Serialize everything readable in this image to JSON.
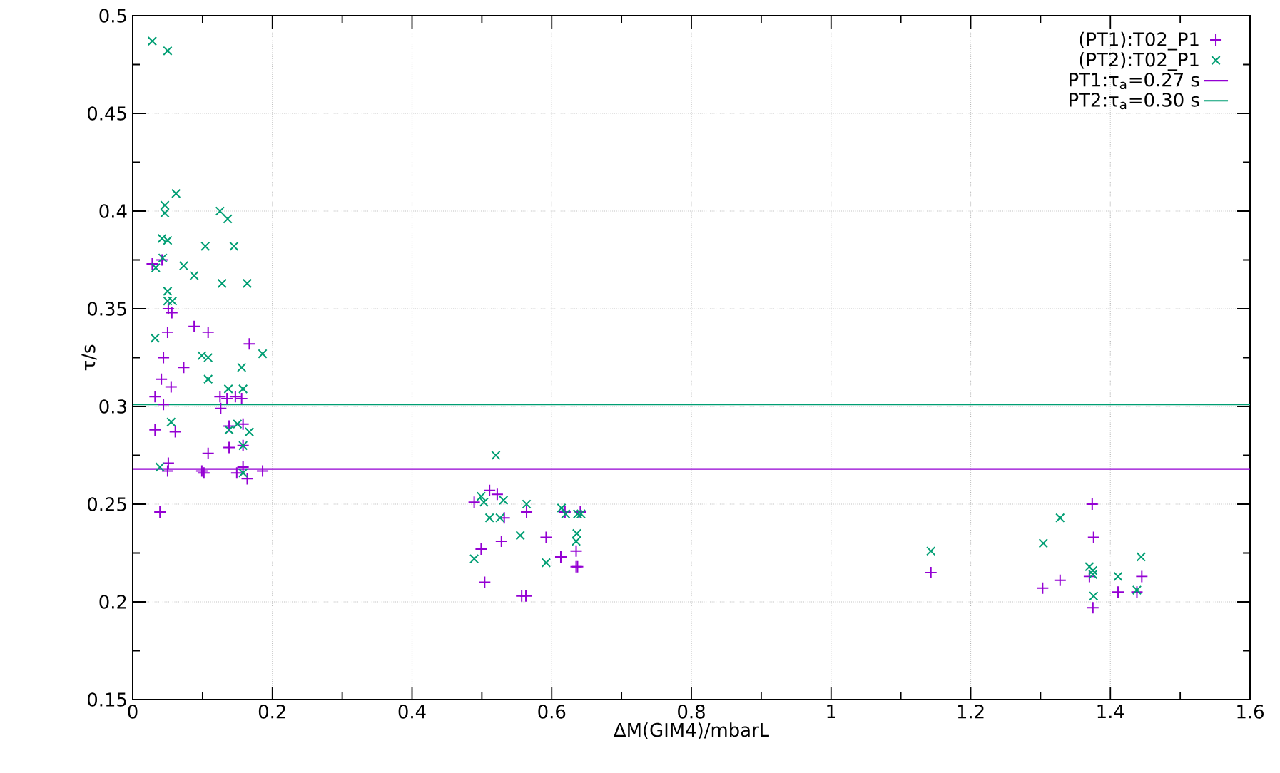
{
  "chart_data": {
    "type": "scatter",
    "xlabel": "ΔM(GIM4)/mbarL",
    "ylabel": "τ/s",
    "xlim": [
      0,
      1.6
    ],
    "ylim": [
      0.15,
      0.5
    ],
    "xticks": [
      0,
      0.2,
      0.4,
      0.6,
      0.8,
      1,
      1.2,
      1.4,
      1.6
    ],
    "yticks": [
      0.15,
      0.2,
      0.25,
      0.3,
      0.35,
      0.4,
      0.45,
      0.5
    ],
    "grid": true,
    "legend": "top right",
    "series": [
      {
        "name": "(PT1):T02_P1",
        "color": "#9400d3",
        "marker": "plus",
        "x": [
          0.028,
          0.042,
          0.051,
          0.056,
          0.05,
          0.088,
          0.108,
          0.044,
          0.167,
          0.073,
          0.041,
          0.055,
          0.032,
          0.044,
          0.125,
          0.135,
          0.147,
          0.156,
          0.126,
          0.032,
          0.061,
          0.138,
          0.158,
          0.138,
          0.158,
          0.108,
          0.051,
          0.05,
          0.099,
          0.102,
          0.158,
          0.149,
          0.164,
          0.186,
          0.039,
          0.489,
          0.511,
          0.522,
          0.499,
          0.504,
          0.528,
          0.532,
          0.564,
          0.557,
          0.563,
          0.592,
          0.613,
          0.619,
          0.635,
          0.635,
          0.637,
          0.641,
          1.143,
          1.303,
          1.328,
          1.374,
          1.376,
          1.37,
          1.375,
          1.411,
          1.438,
          1.445
        ],
        "values": [
          0.373,
          0.375,
          0.35,
          0.348,
          0.338,
          0.341,
          0.338,
          0.325,
          0.332,
          0.32,
          0.314,
          0.31,
          0.305,
          0.301,
          0.305,
          0.304,
          0.305,
          0.304,
          0.299,
          0.288,
          0.287,
          0.29,
          0.291,
          0.279,
          0.28,
          0.276,
          0.271,
          0.267,
          0.267,
          0.266,
          0.269,
          0.266,
          0.263,
          0.267,
          0.246,
          0.251,
          0.257,
          0.255,
          0.227,
          0.21,
          0.231,
          0.243,
          0.246,
          0.203,
          0.203,
          0.233,
          0.223,
          0.246,
          0.226,
          0.218,
          0.218,
          0.246,
          0.215,
          0.207,
          0.211,
          0.25,
          0.233,
          0.213,
          0.197,
          0.205,
          0.205,
          0.213
        ]
      },
      {
        "name": "(PT2):T02_P1",
        "color": "#009e73",
        "marker": "cross",
        "x": [
          0.028,
          0.05,
          0.062,
          0.046,
          0.046,
          0.125,
          0.136,
          0.042,
          0.05,
          0.104,
          0.145,
          0.043,
          0.033,
          0.073,
          0.088,
          0.128,
          0.164,
          0.05,
          0.05,
          0.057,
          0.032,
          0.099,
          0.108,
          0.186,
          0.156,
          0.108,
          0.137,
          0.158,
          0.055,
          0.15,
          0.138,
          0.167,
          0.158,
          0.039,
          0.158,
          0.52,
          0.489,
          0.499,
          0.503,
          0.511,
          0.526,
          0.531,
          0.564,
          0.555,
          0.592,
          0.614,
          0.62,
          0.636,
          0.635,
          0.637,
          0.642,
          1.143,
          1.304,
          1.328,
          1.37,
          1.375,
          1.375,
          1.376,
          1.411,
          1.438,
          1.444
        ],
        "values": [
          0.487,
          0.482,
          0.409,
          0.403,
          0.399,
          0.4,
          0.396,
          0.386,
          0.385,
          0.382,
          0.382,
          0.376,
          0.371,
          0.372,
          0.367,
          0.363,
          0.363,
          0.359,
          0.354,
          0.354,
          0.335,
          0.326,
          0.325,
          0.327,
          0.32,
          0.314,
          0.309,
          0.309,
          0.292,
          0.291,
          0.288,
          0.287,
          0.28,
          0.269,
          0.266,
          0.275,
          0.222,
          0.254,
          0.251,
          0.243,
          0.243,
          0.252,
          0.25,
          0.234,
          0.22,
          0.248,
          0.245,
          0.235,
          0.231,
          0.245,
          0.245,
          0.226,
          0.23,
          0.243,
          0.218,
          0.216,
          0.214,
          0.203,
          0.213,
          0.206,
          0.223
        ]
      },
      {
        "name": "PT1:τ$_{a}$=0.27 s",
        "type": "line",
        "color": "#9400d3",
        "x": [
          0,
          1.6
        ],
        "values": [
          0.268,
          0.268
        ]
      },
      {
        "name": "PT2:τ$_{a}$=0.30 s",
        "type": "line",
        "color": "#009e73",
        "x": [
          0,
          1.6
        ],
        "values": [
          0.301,
          0.301
        ]
      }
    ]
  }
}
